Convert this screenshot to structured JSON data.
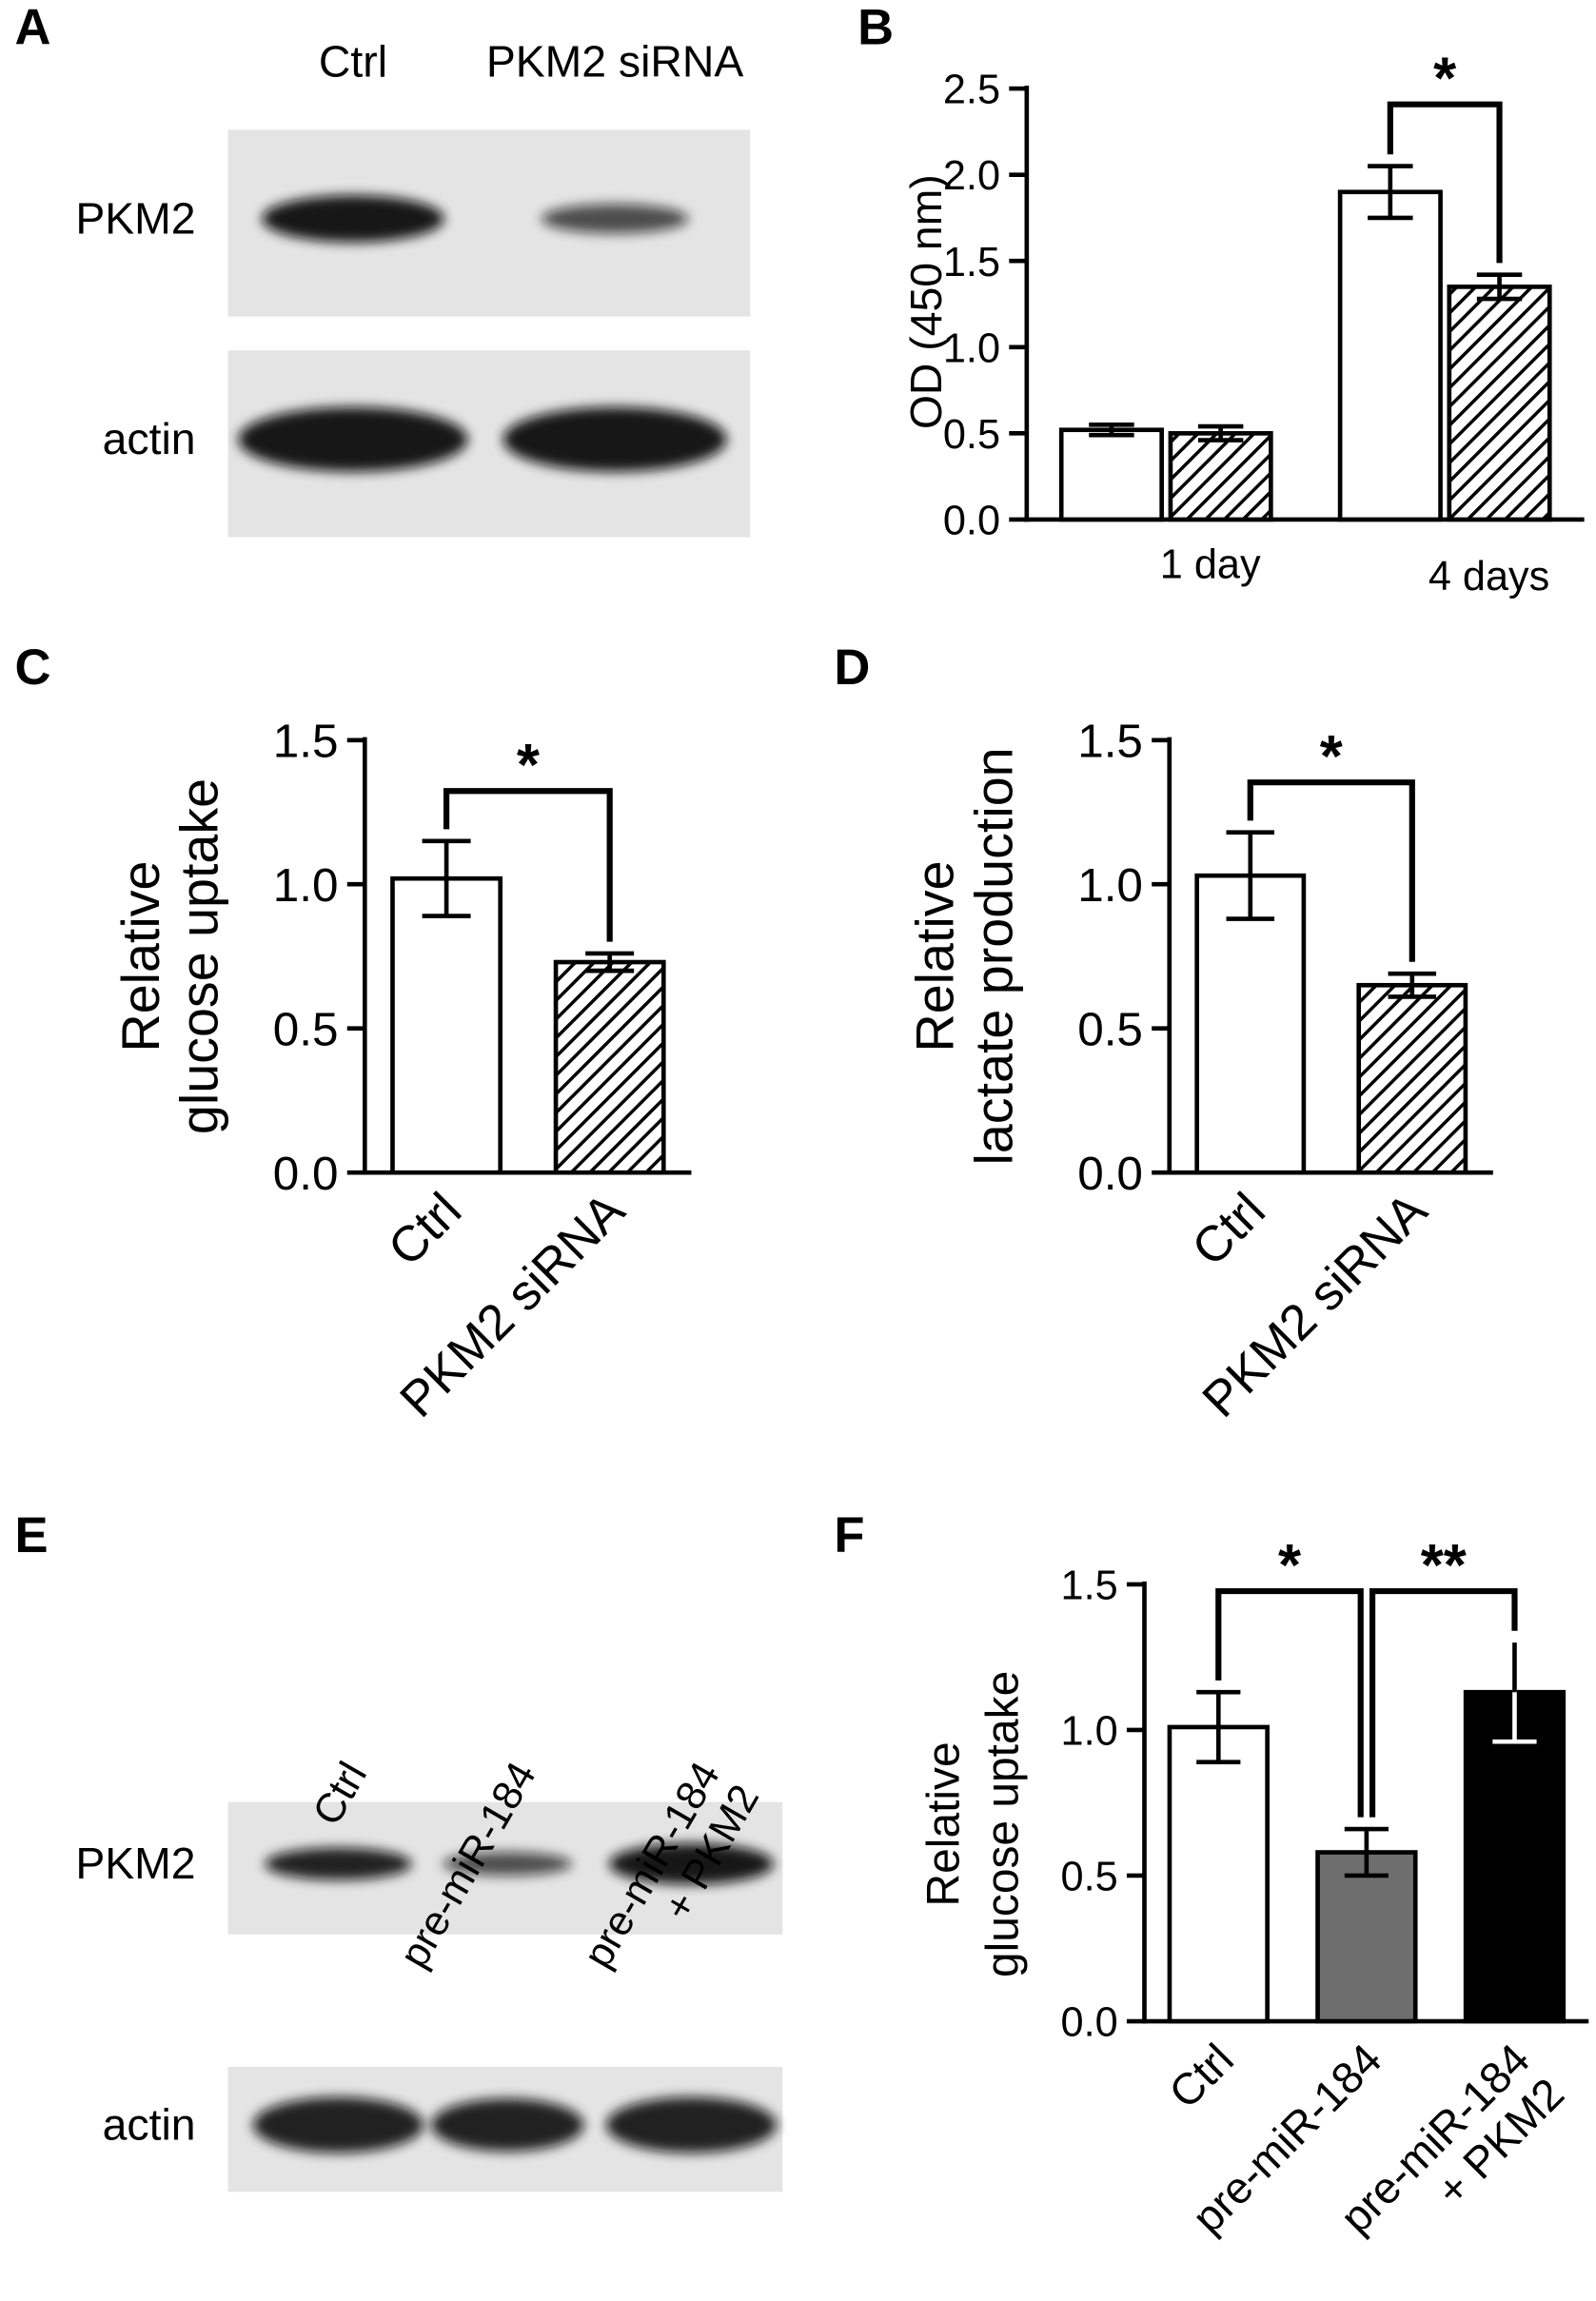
{
  "blots": [
    {
      "panel": "A",
      "lanes": [
        "Ctrl",
        "PKM2 siRNA"
      ],
      "rows": [
        "PKM2",
        "actin"
      ]
    },
    {
      "panel": "E",
      "lanes": [
        "Ctrl",
        "pre-miR-184",
        [
          "pre-miR-184",
          "+ PKM2"
        ]
      ],
      "rows": [
        "PKM2",
        "actin"
      ]
    }
  ],
  "chart_data": [
    {
      "panel": "B",
      "type": "bar",
      "ylabel": "OD (450 nm)",
      "categories": [
        "1 day",
        "4 days"
      ],
      "series": [
        {
          "colors": [
            "#ffffff",
            "#ffffff"
          ],
          "patterns": [
            "solid",
            "solid"
          ],
          "values": [
            0.52,
            1.9
          ],
          "errors": [
            0.03,
            0.15
          ]
        },
        {
          "colors": [
            "#ffffff",
            "#ffffff"
          ],
          "patterns": [
            "hatch",
            "hatch"
          ],
          "values": [
            0.5,
            1.35
          ],
          "errors": [
            0.04,
            0.07
          ]
        }
      ],
      "ylim": [
        0,
        2.5
      ],
      "yticks": [
        {
          "value": 0,
          "label": "0.0"
        },
        0.5,
        {
          "value": 1,
          "label": "1.0"
        },
        1.5,
        {
          "value": 2,
          "label": "2.0"
        },
        2.5
      ],
      "significance": [
        {
          "from": [
            1,
            0
          ],
          "to": [
            1,
            1
          ],
          "label": "*"
        }
      ]
    },
    {
      "panel": "C",
      "type": "bar",
      "ylabel": [
        "Relative",
        "glucose uptake"
      ],
      "categories": [
        "Ctrl",
        "PKM2 siRNA"
      ],
      "series": [
        {
          "colors": [
            "#ffffff",
            "#ffffff"
          ],
          "patterns": [
            "solid",
            "hatch"
          ],
          "values": [
            1.02,
            0.73
          ],
          "errors": [
            0.13,
            0.03
          ]
        }
      ],
      "ylim": [
        0,
        1.5
      ],
      "yticks": [
        {
          "value": 0,
          "label": "0.0"
        },
        0.5,
        {
          "value": 1,
          "label": "1.0"
        },
        1.5
      ],
      "significance": [
        {
          "from": [
            0,
            0
          ],
          "to": [
            1,
            0
          ],
          "label": "*"
        }
      ]
    },
    {
      "panel": "D",
      "type": "bar",
      "ylabel": [
        "Relative",
        "lactate production"
      ],
      "categories": [
        "Ctrl",
        "PKM2 siRNA"
      ],
      "series": [
        {
          "colors": [
            "#ffffff",
            "#ffffff"
          ],
          "patterns": [
            "solid",
            "hatch"
          ],
          "values": [
            1.03,
            0.65
          ],
          "errors": [
            0.15,
            0.04
          ]
        }
      ],
      "ylim": [
        0,
        1.5
      ],
      "yticks": [
        {
          "value": 0,
          "label": "0.0"
        },
        0.5,
        {
          "value": 1,
          "label": "1.0"
        },
        1.5
      ],
      "significance": [
        {
          "from": [
            0,
            0
          ],
          "to": [
            1,
            0
          ],
          "label": "*"
        }
      ]
    },
    {
      "panel": "F",
      "type": "bar",
      "ylabel": [
        "Relative",
        "glucose uptake"
      ],
      "categories": [
        "Ctrl",
        "pre-miR-184",
        [
          "pre-miR-184",
          "+ PKM2"
        ]
      ],
      "series": [
        {
          "colors": [
            "#ffffff",
            "#6e6e6e",
            "#000000"
          ],
          "patterns": [
            "solid",
            "solid",
            "solid"
          ],
          "values": [
            1.01,
            0.58,
            1.13
          ],
          "errors": [
            0.12,
            0.08,
            0.17
          ]
        }
      ],
      "ylim": [
        0,
        1.5
      ],
      "yticks": [
        {
          "value": 0,
          "label": "0.0"
        },
        0.5,
        {
          "value": 1,
          "label": "1.0"
        },
        1.5
      ],
      "significance": [
        {
          "from": [
            0,
            0
          ],
          "to": [
            1,
            0
          ],
          "label": "*"
        },
        {
          "from": [
            1,
            0
          ],
          "to": [
            2,
            0
          ],
          "label": "**"
        }
      ]
    }
  ]
}
